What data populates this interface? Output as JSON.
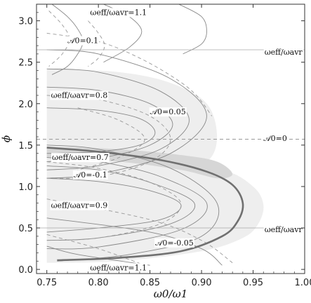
{
  "chart_data": {
    "type": "line",
    "title": "",
    "xlabel": "ω0/ω1",
    "ylabel": "ϕ",
    "xlim": [
      0.74,
      1.0
    ],
    "ylim": [
      -0.05,
      3.2
    ],
    "xticks": [
      "0.75",
      "0.80",
      "0.85",
      "0.90",
      "0.95",
      "1.00"
    ],
    "xtick_values": [
      0.75,
      0.8,
      0.85,
      0.9,
      0.95,
      1.0
    ],
    "yticks": [
      "0.0",
      "0.5",
      "1.0",
      "1.5",
      "2.0",
      "2.5",
      "3.0"
    ],
    "ytick_values": [
      0.0,
      0.5,
      1.0,
      1.5,
      2.0,
      2.5,
      3.0
    ],
    "grid": false,
    "legend": "none",
    "colors": {
      "axis": "#333333",
      "thin_curve": "#888888",
      "dashed_curve": "#999999",
      "main_curve": "#707070",
      "light_band": "#eeeeee",
      "dark_band": "#d6d6d6"
    },
    "series": [
      {
        "style": "solid",
        "x": [
          0.755,
          0.77,
          0.78,
          0.785,
          0.78,
          0.77,
          0.755
        ],
        "y": [
          3.2,
          3.05,
          2.9,
          2.75,
          2.6,
          2.45,
          2.35
        ]
      },
      {
        "style": "solid",
        "x": [
          0.805,
          0.83,
          0.842,
          0.83,
          0.805
        ],
        "y": [
          3.2,
          3.05,
          2.87,
          2.68,
          2.5
        ]
      },
      {
        "style": "solid",
        "x": [
          0.878,
          0.9,
          0.905,
          0.9,
          0.882
        ],
        "y": [
          3.2,
          3.05,
          2.87,
          2.72,
          2.6
        ]
      },
      {
        "style": "solid",
        "x": [
          0.75,
          0.8,
          0.84,
          0.855,
          0.84,
          0.8,
          0.75
        ],
        "y": [
          1.95,
          1.92,
          1.82,
          1.65,
          1.5,
          1.42,
          1.4
        ]
      },
      {
        "style": "solid",
        "x": [
          0.75,
          0.8,
          0.85,
          0.872,
          0.85,
          0.8,
          0.75
        ],
        "y": [
          2.2,
          2.16,
          2.0,
          1.75,
          1.5,
          1.34,
          1.3
        ]
      },
      {
        "style": "solid",
        "x": [
          0.75,
          0.8,
          0.86,
          0.888,
          0.86,
          0.8,
          0.75
        ],
        "y": [
          2.42,
          2.38,
          2.15,
          1.8,
          1.45,
          1.25,
          1.2
        ]
      },
      {
        "style": "solid",
        "x": [
          0.75,
          0.8,
          0.87,
          0.905,
          0.87,
          0.8,
          0.75
        ],
        "y": [
          2.65,
          2.6,
          2.3,
          1.85,
          1.4,
          1.15,
          1.1
        ]
      },
      {
        "style": "solid",
        "x": [
          0.75,
          0.8,
          0.85,
          0.88,
          0.86,
          0.8,
          0.75
        ],
        "y": [
          1.1,
          1.06,
          0.95,
          0.78,
          0.6,
          0.5,
          0.45
        ]
      },
      {
        "style": "solid",
        "x": [
          0.75,
          0.8,
          0.85,
          0.893,
          0.87,
          0.8,
          0.75
        ],
        "y": [
          1.25,
          1.2,
          1.05,
          0.8,
          0.55,
          0.38,
          0.35
        ]
      },
      {
        "style": "solid",
        "x": [
          0.75,
          0.8,
          0.86,
          0.905,
          0.88,
          0.8,
          0.75
        ],
        "y": [
          1.35,
          1.3,
          1.12,
          0.8,
          0.48,
          0.27,
          0.25
        ]
      },
      {
        "style": "solid",
        "x": [
          0.75,
          0.8,
          0.87,
          0.915,
          0.9,
          0.83,
          0.76
        ],
        "y": [
          1.5,
          1.45,
          1.22,
          0.8,
          0.4,
          0.18,
          0.1
        ]
      },
      {
        "style": "solid",
        "x": [
          0.75,
          0.85,
          0.9,
          0.92
        ],
        "y": [
          0.62,
          0.45,
          0.25,
          0.05
        ]
      },
      {
        "style": "solid",
        "x": [
          0.75,
          0.78,
          0.85
        ],
        "y": [
          0.28,
          0.18,
          0.05
        ]
      },
      {
        "style": "dashed",
        "x": [
          0.752,
          0.765,
          0.772,
          0.765,
          0.752
        ],
        "y": [
          3.12,
          2.95,
          2.78,
          2.6,
          2.45
        ]
      },
      {
        "style": "dashed",
        "x": [
          0.79,
          0.8,
          0.806,
          0.8,
          0.79
        ],
        "y": [
          3.0,
          2.85,
          2.7,
          2.55,
          2.45
        ]
      },
      {
        "style": "dashed",
        "x": [
          0.75,
          0.8,
          0.84,
          0.875,
          0.895,
          0.91
        ],
        "y": [
          2.85,
          2.75,
          2.55,
          2.3,
          2.1,
          1.85
        ]
      },
      {
        "style": "dashed",
        "x": [
          0.75,
          0.8,
          0.85,
          0.87,
          0.85,
          0.8,
          0.75
        ],
        "y": [
          2.1,
          2.05,
          1.85,
          1.57,
          1.3,
          1.12,
          1.1
        ]
      },
      {
        "style": "dashed",
        "x": [
          0.78,
          0.82,
          0.845,
          0.82,
          0.78
        ],
        "y": [
          1.95,
          1.8,
          1.57,
          1.35,
          1.2
        ]
      },
      {
        "style": "dashed",
        "x": [
          0.75,
          0.8,
          0.85,
          0.88,
          0.86,
          0.8,
          0.75
        ],
        "y": [
          1.3,
          1.22,
          1.05,
          0.8,
          0.55,
          0.38,
          0.35
        ]
      },
      {
        "style": "dashed",
        "x": [
          0.75,
          0.85,
          0.9,
          0.93
        ],
        "y": [
          0.85,
          0.6,
          0.35,
          0.08
        ]
      },
      {
        "style": "dashed",
        "x": [
          0.75,
          0.8,
          0.845
        ],
        "y": [
          0.42,
          0.25,
          0.05
        ]
      },
      {
        "style": "dashed",
        "x": [
          0.74,
          1.0
        ],
        "y": [
          1.5708,
          1.5708
        ]
      },
      {
        "style": "thin",
        "x": [
          0.74,
          1.0
        ],
        "y": [
          2.65,
          2.65
        ]
      },
      {
        "style": "thin",
        "x": [
          0.74,
          1.0
        ],
        "y": [
          0.5,
          0.5
        ]
      },
      {
        "style": "thick",
        "x": [
          0.75,
          0.8,
          0.86,
          0.905,
          0.93,
          0.94,
          0.935,
          0.92,
          0.88,
          0.82,
          0.76
        ],
        "y": [
          1.47,
          1.42,
          1.32,
          1.18,
          1.02,
          0.8,
          0.58,
          0.4,
          0.22,
          0.14,
          0.11
        ]
      }
    ],
    "bands": [
      {
        "shade": "light",
        "x_outer": [
          0.75,
          0.82,
          0.87,
          0.905,
          0.915,
          0.905,
          0.87,
          0.82,
          0.75
        ],
        "y_outer": [
          2.42,
          2.38,
          2.25,
          2.0,
          1.6,
          1.3,
          1.2,
          1.18,
          1.2
        ]
      },
      {
        "shade": "light",
        "x_outer": [
          0.75,
          0.85,
          0.92,
          0.95,
          0.96,
          0.955,
          0.94,
          0.9,
          0.82,
          0.75
        ],
        "y_outer": [
          1.38,
          1.32,
          1.2,
          1.0,
          0.78,
          0.55,
          0.38,
          0.22,
          0.1,
          0.08
        ]
      },
      {
        "shade": "dark",
        "x_outer": [
          0.75,
          0.82,
          0.88,
          0.915,
          0.93,
          0.915,
          0.88,
          0.82,
          0.75
        ],
        "y_outer": [
          1.48,
          1.45,
          1.38,
          1.3,
          1.15,
          1.1,
          1.2,
          1.3,
          1.35
        ]
      }
    ],
    "annotations": [
      {
        "label": "ωeff/ωavr=1.1",
        "x": 0.792,
        "y": 3.07
      },
      {
        "label": "𝒜0=0.1",
        "x": 0.77,
        "y": 2.73
      },
      {
        "label": "ωeff/ωavr",
        "x": 0.961,
        "y": 2.59
      },
      {
        "label": "ωeff/ωavr=0.8",
        "x": 0.754,
        "y": 2.07
      },
      {
        "label": "𝒜0=0.05",
        "x": 0.85,
        "y": 1.87
      },
      {
        "label": "𝒜0=0",
        "x": 0.96,
        "y": 1.55
      },
      {
        "label": "ωeff/ωavr=0.7",
        "x": 0.755,
        "y": 1.32
      },
      {
        "label": "𝒜0=-0.1",
        "x": 0.776,
        "y": 1.11
      },
      {
        "label": "ωeff/ωavr=0.9",
        "x": 0.754,
        "y": 0.74
      },
      {
        "label": "ωeff/ωavr",
        "x": 0.961,
        "y": 0.45
      },
      {
        "label": "𝒜0=-0.05",
        "x": 0.855,
        "y": 0.29
      },
      {
        "label": "ωeff/ωavr=1.1",
        "x": 0.792,
        "y": -0.01
      }
    ]
  }
}
